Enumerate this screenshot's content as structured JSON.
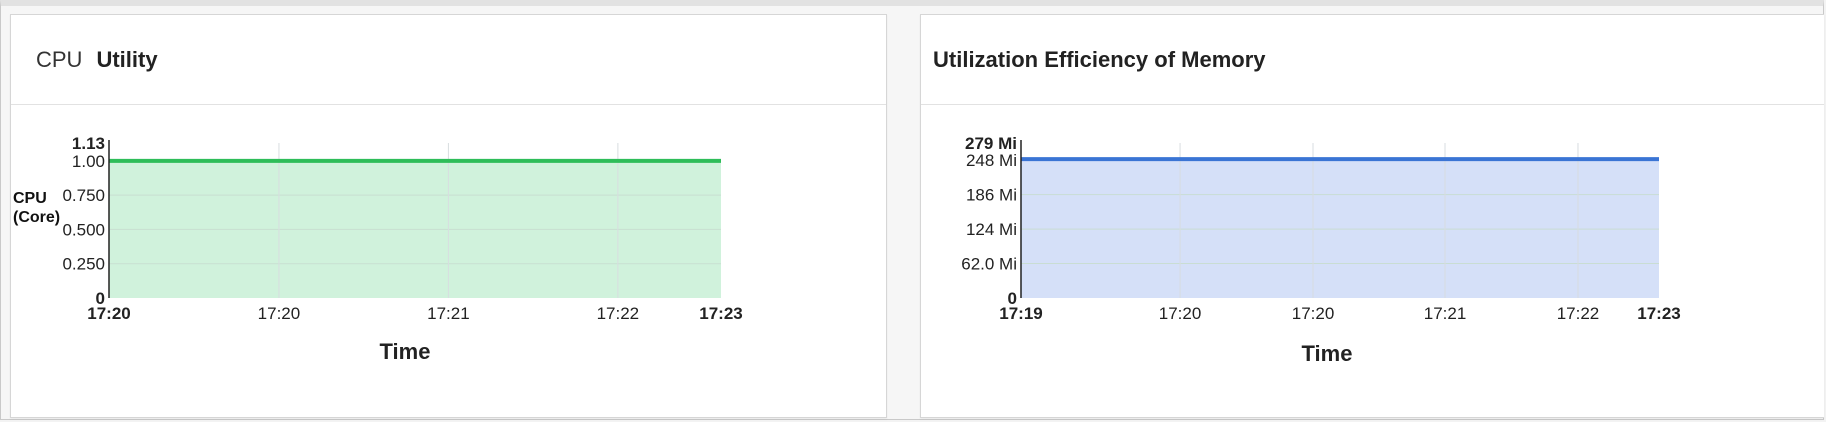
{
  "chart_data": [
    {
      "type": "area",
      "title_prefix": "CPU",
      "title": "Utility",
      "ylabel_lines": [
        "CPU",
        "(Core)"
      ],
      "xlabel": "Time",
      "y_max_label": "1.13",
      "y_ticks": [
        "0",
        "0.250",
        "0.500",
        "0.750",
        "1.00"
      ],
      "y_tick_values": [
        0,
        0.25,
        0.5,
        0.75,
        1.0
      ],
      "ylim": [
        0,
        1.13
      ],
      "x_tick_labels": [
        "17:20",
        "17:20",
        "17:21",
        "17:22",
        "17:23"
      ],
      "series": [
        {
          "values": [
            1.0,
            1.0,
            1.0,
            1.0,
            1.0
          ],
          "color": "#2ebd59",
          "fill": "#d0f2dc"
        }
      ],
      "grid": true
    },
    {
      "type": "area",
      "title_prefix": "",
      "title": "Utilization Efficiency of Memory",
      "ylabel_lines": [],
      "xlabel": "Time",
      "y_max_label": "279 Mi",
      "y_ticks": [
        "0",
        "62.0 Mi",
        "124 Mi",
        "186 Mi",
        "248 Mi"
      ],
      "y_tick_values": [
        0,
        62,
        124,
        186,
        248
      ],
      "ylim": [
        0,
        279
      ],
      "x_tick_labels": [
        "17:19",
        "17:20",
        "17:20",
        "17:21",
        "17:22",
        "17:23"
      ],
      "series": [
        {
          "values": [
            250,
            250,
            250,
            250,
            250,
            250
          ],
          "color": "#3a74d4",
          "fill": "#d5e0f8"
        }
      ],
      "grid": true
    }
  ]
}
